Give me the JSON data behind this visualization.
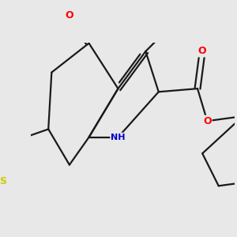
{
  "background_color": "#e8e8e8",
  "bond_color": "#1a1a1a",
  "bond_width": 1.6,
  "atom_colors": {
    "O": "#ff0000",
    "N": "#0000cd",
    "S": "#cccc00"
  }
}
